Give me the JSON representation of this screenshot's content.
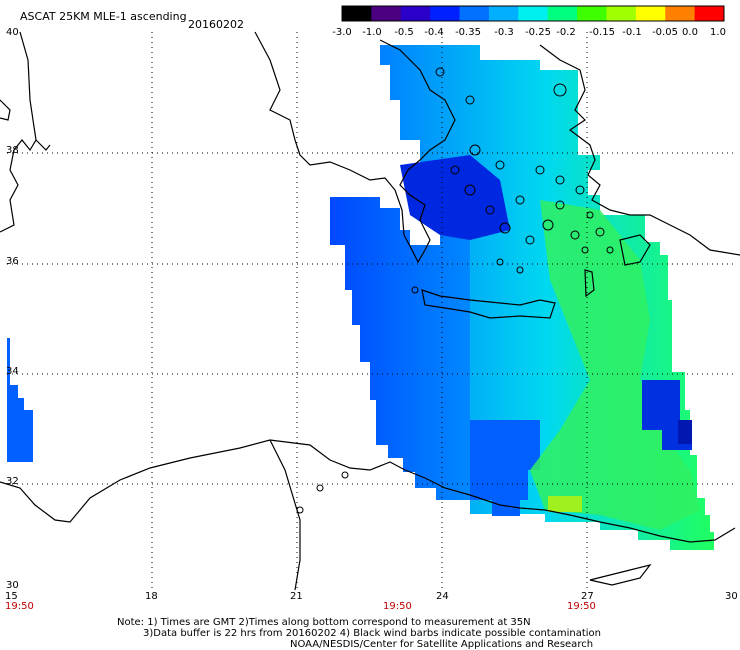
{
  "header": {
    "title": "ASCAT 25KM MLE-1 ascending",
    "date": "20160202"
  },
  "colorbar": {
    "labels": [
      "-3.0",
      "-1.0",
      "-0.5",
      "-0.4",
      "-0.35",
      "-0.3",
      "-0.25",
      "-0.2",
      "-0.15",
      "-0.1",
      "-0.05",
      "0.0",
      "1.0"
    ],
    "colors": [
      "#000000",
      "#4b0082",
      "#2a00c8",
      "#0020ff",
      "#0070ff",
      "#00b0ff",
      "#00f0f0",
      "#00ff80",
      "#40ff00",
      "#a0ff00",
      "#ffff00",
      "#ff8000",
      "#ff0000"
    ]
  },
  "map": {
    "lat_labels": [
      "40",
      "38",
      "36",
      "34",
      "32",
      "30"
    ],
    "lon_labels": [
      "15",
      "18",
      "21",
      "24",
      "27",
      "30"
    ],
    "time_labels": [
      "19:50",
      "19:50",
      "19:50"
    ]
  },
  "footer": {
    "note1": "Note: 1) Times are GMT 2)Times along bottom correspond to measurement at 35N",
    "note2": "3)Data buffer is 22 hrs from 20160202 4) Black wind barbs indicate possible contamination",
    "credit": "NOAA/NESDIS/Center for Satellite Applications and Research"
  }
}
